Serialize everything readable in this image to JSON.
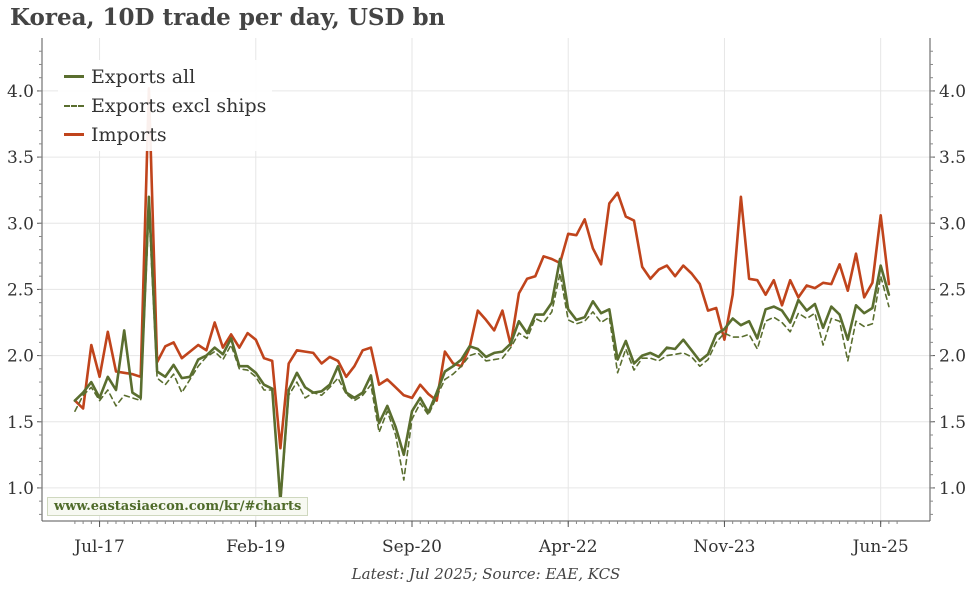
{
  "title": "Korea, 10D trade per day, USD bn",
  "footer": "Latest: Jul 2025; Source: EAE, KCS",
  "watermark": "www.eastasiaecon.com/kr/#charts",
  "colors": {
    "exports_all": "#5a6e2f",
    "exports_excl_ships": "#5a6e2f",
    "imports": "#c0441c",
    "grid": "#e6e6e6"
  },
  "chart_data": {
    "type": "line",
    "title": "Korea, 10D trade per day, USD bn",
    "x_start_date": "2017-01",
    "x_step": "10 days",
    "x_ticks": [
      {
        "label": "Jul-17",
        "index": 9
      },
      {
        "label": "Feb-19",
        "index": 66
      },
      {
        "label": "Sep-20",
        "index": 123
      },
      {
        "label": "Apr-22",
        "index": 180
      },
      {
        "label": "Nov-23",
        "index": 237
      },
      {
        "label": "Jun-25",
        "index": 294
      }
    ],
    "ylim": [
      0.75,
      4.4
    ],
    "y_ticks": [
      1.0,
      1.5,
      2.0,
      2.5,
      3.0,
      3.5,
      4.0
    ],
    "grid": true,
    "legend_position": "top-left",
    "series": [
      {
        "name": "Exports all",
        "style": "solid",
        "x": [
          0,
          3,
          6,
          9,
          12,
          15,
          18,
          21,
          24,
          27,
          30,
          33,
          36,
          39,
          42,
          45,
          48,
          51,
          54,
          57,
          60,
          63,
          66,
          69,
          72,
          75,
          78,
          81,
          84,
          87,
          90,
          93,
          96,
          99,
          102,
          105,
          108,
          111,
          114,
          117,
          120,
          123,
          126,
          129,
          132,
          135,
          138,
          141,
          144,
          147,
          150,
          153,
          156,
          159,
          162,
          165,
          168,
          171,
          174,
          177,
          180,
          183,
          186,
          189,
          192,
          195,
          198,
          201,
          204,
          207,
          210,
          213,
          216,
          219,
          222,
          225,
          228,
          231,
          234,
          237,
          240,
          243,
          246,
          249,
          252,
          255,
          258,
          261,
          264,
          267,
          270,
          273,
          276,
          279,
          282,
          285,
          288,
          291,
          294,
          297
        ],
        "y": [
          1.66,
          1.72,
          1.8,
          1.68,
          1.84,
          1.74,
          2.19,
          1.72,
          1.68,
          3.2,
          1.88,
          1.84,
          1.93,
          1.83,
          1.84,
          1.97,
          2.0,
          2.06,
          2.01,
          2.13,
          1.92,
          1.92,
          1.87,
          1.78,
          1.75,
          0.9,
          1.74,
          1.87,
          1.76,
          1.72,
          1.73,
          1.78,
          1.92,
          1.72,
          1.68,
          1.72,
          1.85,
          1.49,
          1.62,
          1.46,
          1.25,
          1.58,
          1.68,
          1.57,
          1.72,
          1.88,
          1.92,
          1.97,
          2.07,
          2.05,
          1.99,
          2.02,
          2.03,
          2.09,
          2.26,
          2.17,
          2.31,
          2.31,
          2.4,
          2.73,
          2.35,
          2.27,
          2.29,
          2.41,
          2.32,
          2.35,
          1.97,
          2.11,
          1.94,
          2.0,
          2.02,
          1.99,
          2.06,
          2.05,
          2.12,
          2.04,
          1.96,
          2.01,
          2.16,
          2.2,
          2.28,
          2.23,
          2.26,
          2.13,
          2.35,
          2.37,
          2.34,
          2.25,
          2.42,
          2.34,
          2.39,
          2.21,
          2.37,
          2.31,
          2.12,
          2.38,
          2.32,
          2.36,
          2.68,
          2.46
        ]
      },
      {
        "name": "Exports excl ships",
        "style": "dashed",
        "x": [
          0,
          3,
          6,
          9,
          12,
          15,
          18,
          21,
          24,
          27,
          30,
          33,
          36,
          39,
          42,
          45,
          48,
          51,
          54,
          57,
          60,
          63,
          66,
          69,
          72,
          75,
          78,
          81,
          84,
          87,
          90,
          93,
          96,
          99,
          102,
          105,
          108,
          111,
          114,
          117,
          120,
          123,
          126,
          129,
          132,
          135,
          138,
          141,
          144,
          147,
          150,
          153,
          156,
          159,
          162,
          165,
          168,
          171,
          174,
          177,
          180,
          183,
          186,
          189,
          192,
          195,
          198,
          201,
          204,
          207,
          210,
          213,
          216,
          219,
          222,
          225,
          228,
          231,
          234,
          237,
          240,
          243,
          246,
          249,
          252,
          255,
          258,
          261,
          264,
          267,
          270,
          273,
          276,
          279,
          282,
          285,
          288,
          291,
          294,
          297
        ],
        "y": [
          1.58,
          1.7,
          1.76,
          1.66,
          1.74,
          1.62,
          1.7,
          1.68,
          1.66,
          3.1,
          1.83,
          1.78,
          1.86,
          1.72,
          1.82,
          1.92,
          1.99,
          2.03,
          1.97,
          2.08,
          1.9,
          1.89,
          1.84,
          1.74,
          1.74,
          0.87,
          1.7,
          1.8,
          1.68,
          1.72,
          1.7,
          1.76,
          1.83,
          1.71,
          1.66,
          1.7,
          1.78,
          1.42,
          1.58,
          1.4,
          1.06,
          1.52,
          1.64,
          1.55,
          1.69,
          1.82,
          1.86,
          1.92,
          2.0,
          2.02,
          1.96,
          1.97,
          1.98,
          2.06,
          2.17,
          2.13,
          2.28,
          2.25,
          2.33,
          2.62,
          2.27,
          2.24,
          2.26,
          2.33,
          2.25,
          2.29,
          1.87,
          2.05,
          1.89,
          1.98,
          1.98,
          1.96,
          2.0,
          2.01,
          2.02,
          1.99,
          1.92,
          1.97,
          2.1,
          2.17,
          2.14,
          2.14,
          2.16,
          2.05,
          2.26,
          2.29,
          2.25,
          2.18,
          2.32,
          2.28,
          2.32,
          2.08,
          2.28,
          2.26,
          1.96,
          2.26,
          2.22,
          2.24,
          2.6,
          2.37
        ]
      },
      {
        "name": "Imports",
        "style": "solid",
        "x": [
          0,
          3,
          6,
          9,
          12,
          15,
          18,
          21,
          24,
          27,
          30,
          33,
          36,
          39,
          42,
          45,
          48,
          51,
          54,
          57,
          60,
          63,
          66,
          69,
          72,
          75,
          78,
          81,
          84,
          87,
          90,
          93,
          96,
          99,
          102,
          105,
          108,
          111,
          114,
          117,
          120,
          123,
          126,
          129,
          132,
          135,
          138,
          141,
          144,
          147,
          150,
          153,
          156,
          159,
          162,
          165,
          168,
          171,
          174,
          177,
          180,
          183,
          186,
          189,
          192,
          195,
          198,
          201,
          204,
          207,
          210,
          213,
          216,
          219,
          222,
          225,
          228,
          231,
          234,
          237,
          240,
          243,
          246,
          249,
          252,
          255,
          258,
          261,
          264,
          267,
          270,
          273,
          276,
          279,
          282,
          285,
          288,
          291,
          294,
          297
        ],
        "y": [
          1.66,
          1.6,
          2.08,
          1.84,
          2.18,
          1.88,
          1.87,
          1.86,
          1.84,
          4.02,
          1.95,
          2.07,
          2.1,
          1.98,
          2.03,
          2.08,
          2.04,
          2.25,
          2.06,
          2.16,
          2.06,
          2.17,
          2.12,
          1.98,
          1.96,
          1.3,
          1.94,
          2.04,
          2.03,
          2.02,
          1.94,
          1.99,
          1.96,
          1.84,
          1.92,
          2.04,
          2.06,
          1.78,
          1.82,
          1.76,
          1.7,
          1.68,
          1.78,
          1.71,
          1.66,
          2.03,
          1.94,
          1.92,
          2.06,
          2.34,
          2.27,
          2.19,
          2.34,
          2.08,
          2.47,
          2.58,
          2.6,
          2.75,
          2.73,
          2.7,
          2.92,
          2.91,
          3.03,
          2.81,
          2.69,
          3.15,
          3.23,
          3.05,
          3.02,
          2.67,
          2.58,
          2.65,
          2.68,
          2.6,
          2.68,
          2.62,
          2.54,
          2.34,
          2.36,
          2.12,
          2.46,
          3.2,
          2.58,
          2.57,
          2.46,
          2.57,
          2.38,
          2.57,
          2.44,
          2.53,
          2.51,
          2.55,
          2.54,
          2.69,
          2.49,
          2.77,
          2.44,
          2.55,
          3.06,
          2.54
        ]
      }
    ]
  }
}
